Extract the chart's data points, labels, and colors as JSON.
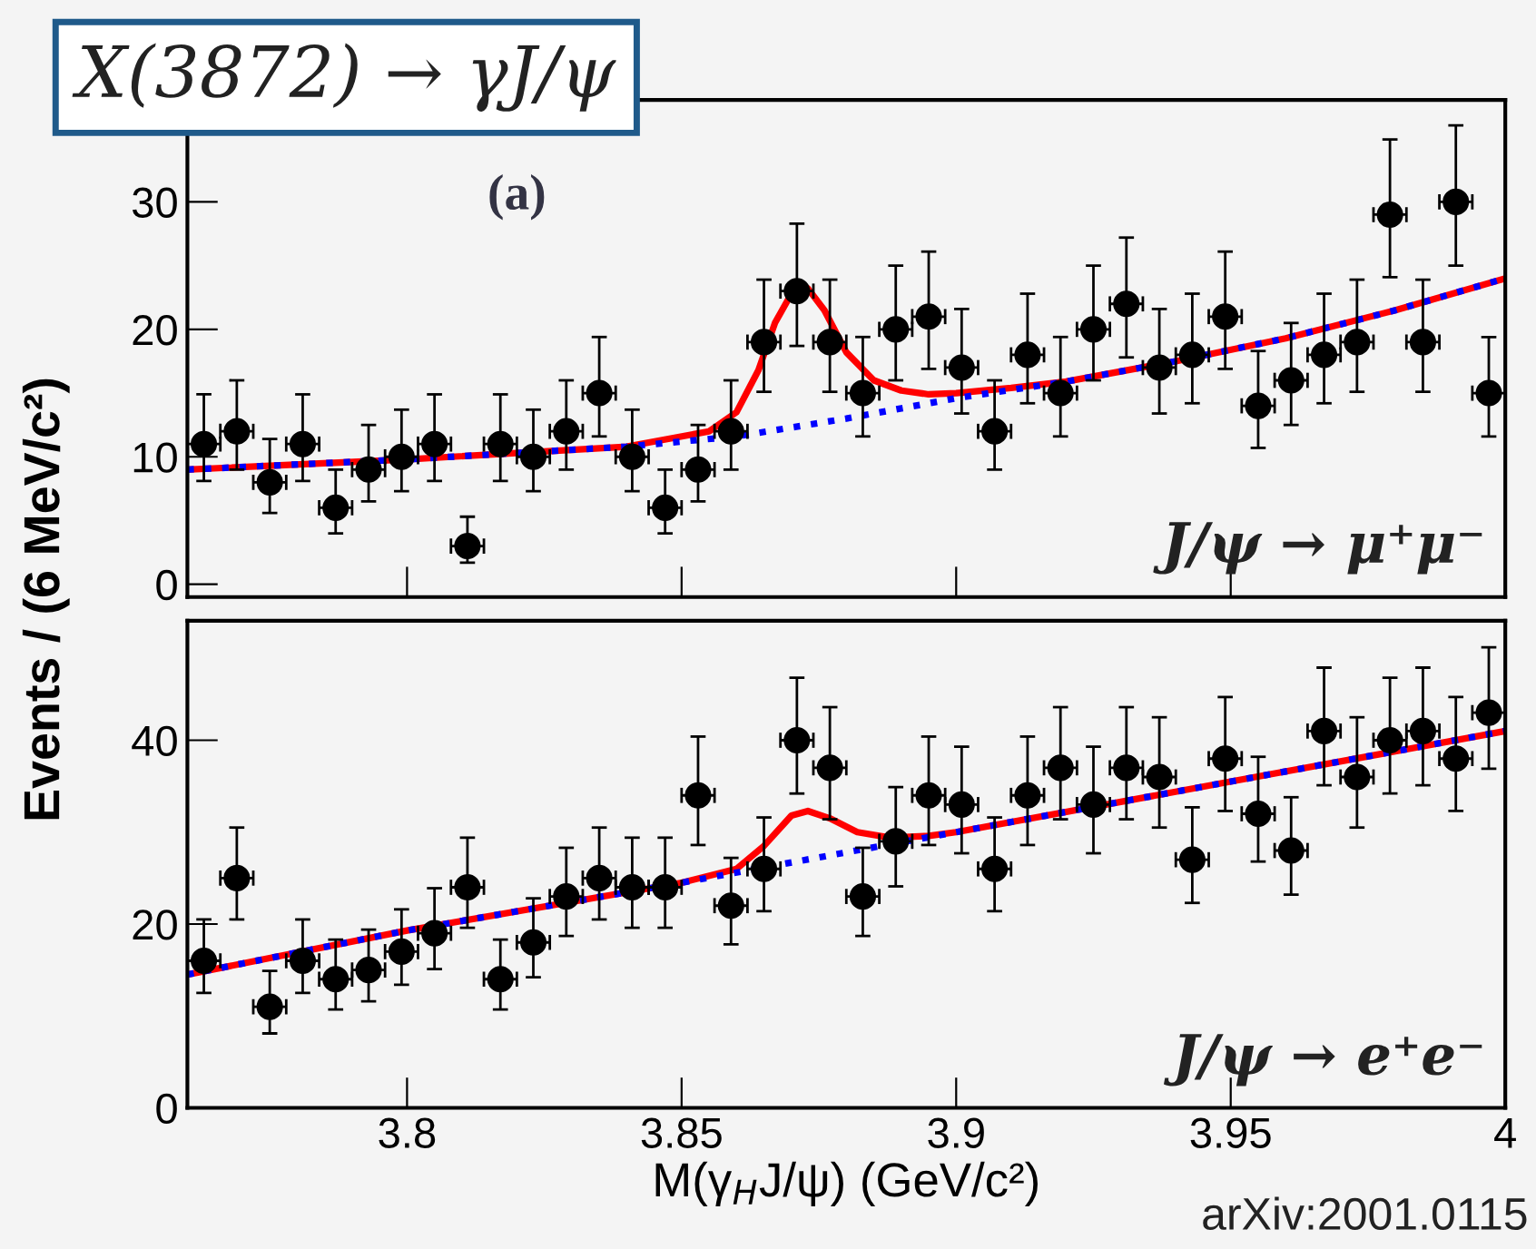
{
  "chart_data": [
    {
      "type": "scatter",
      "xlabel": "M(γ$_{H}$J/ψ) (GeV/c²)",
      "ylabel": "Events / (6 MeV/c²)",
      "xlim": [
        3.76,
        4.0
      ],
      "xticks": [
        3.8,
        3.85,
        3.9,
        3.95,
        4
      ],
      "ylim": [
        0,
        53
      ],
      "yticks": [
        0,
        20,
        40
      ],
      "grid": false,
      "legend": false,
      "annotations": [
        "J/ψ → e⁺e⁻",
        "arXiv:2001.0115"
      ],
      "series": [
        {
          "type": "scatter",
          "marker": "circle",
          "color": "#000000",
          "x": [
            3.763,
            3.769,
            3.775,
            3.781,
            3.787,
            3.793,
            3.799,
            3.805,
            3.811,
            3.817,
            3.823,
            3.829,
            3.835,
            3.841,
            3.847,
            3.853,
            3.859,
            3.865,
            3.871,
            3.877,
            3.883,
            3.889,
            3.895,
            3.901,
            3.907,
            3.913,
            3.919,
            3.925,
            3.931,
            3.937,
            3.943,
            3.949,
            3.955,
            3.961,
            3.967,
            3.973,
            3.979,
            3.985,
            3.991,
            3.997
          ],
          "values": [
            16,
            25,
            11,
            16,
            14,
            15,
            17,
            19,
            24,
            14,
            18,
            23,
            25,
            24,
            24,
            34,
            22,
            26,
            40,
            37,
            23,
            29,
            34,
            33,
            26,
            34,
            37,
            33,
            37,
            36,
            27,
            38,
            32,
            28,
            41,
            36,
            40,
            41,
            38,
            43
          ],
          "errors": [
            [
              12.5,
              20.5
            ],
            [
              20.5,
              30.5
            ],
            [
              8.1,
              14.9
            ],
            [
              12.5,
              20.5
            ],
            [
              10.7,
              18.3
            ],
            [
              11.6,
              19.4
            ],
            [
              13.4,
              21.6
            ],
            [
              15.1,
              23.9
            ],
            [
              19.6,
              29.4
            ],
            [
              10.7,
              18.3
            ],
            [
              14.2,
              22.8
            ],
            [
              18.7,
              28.3
            ],
            [
              20.5,
              30.5
            ],
            [
              19.6,
              29.4
            ],
            [
              19.6,
              29.4
            ],
            [
              28.6,
              40.4
            ],
            [
              17.8,
              27.2
            ],
            [
              21.4,
              31.6
            ],
            [
              34.2,
              46.8
            ],
            [
              31.4,
              43.6
            ],
            [
              18.7,
              28.3
            ],
            [
              24.1,
              34.9
            ],
            [
              28.6,
              40.4
            ],
            [
              27.7,
              39.3
            ],
            [
              21.4,
              31.6
            ],
            [
              28.6,
              40.4
            ],
            [
              31.4,
              43.6
            ],
            [
              27.7,
              39.3
            ],
            [
              31.4,
              43.6
            ],
            [
              30.5,
              42.5
            ],
            [
              22.3,
              32.7
            ],
            [
              32.3,
              44.7
            ],
            [
              26.8,
              38.2
            ],
            [
              23.2,
              33.8
            ],
            [
              35.1,
              47.9
            ],
            [
              30.5,
              42.5
            ],
            [
              34.2,
              46.8
            ],
            [
              35.1,
              47.9
            ],
            [
              32.3,
              44.7
            ],
            [
              36.9,
              50.1
            ]
          ],
          "xerrors": [
            0.003,
            0.003,
            0.003,
            0.003,
            0.003,
            0.003,
            0.003,
            0.003,
            0.003,
            0.003,
            0.003,
            0.003,
            0.003,
            0.003,
            0.003,
            0.003,
            0.003,
            0.003,
            0.003,
            0.003,
            0.003,
            0.003,
            0.003,
            0.003,
            0.003,
            0.003,
            0.003,
            0.003,
            0.003,
            0.003,
            0.003,
            0.003,
            0.003,
            0.003,
            0.003,
            0.003,
            0.003,
            0.003,
            0.003,
            0.003
          ]
        },
        {
          "type": "line",
          "color": "#ff0000",
          "line_style": "solid",
          "x": [
            3.76,
            3.8,
            3.85,
            3.86,
            3.865,
            3.87,
            3.873,
            3.877,
            3.882,
            3.888,
            3.895,
            3.9,
            3.95,
            4.0
          ],
          "values": [
            14.5,
            19.3,
            24.5,
            26,
            28.5,
            31.8,
            32.3,
            31.5,
            30,
            29.4,
            29.6,
            30,
            35.5,
            41
          ]
        },
        {
          "type": "line",
          "color": "#0000ff",
          "line_style": "dotted",
          "x": [
            3.76,
            3.8,
            3.85,
            3.9,
            3.95,
            4.0
          ],
          "values": [
            14.5,
            19.3,
            24.5,
            30,
            35.5,
            41
          ]
        }
      ]
    },
    {
      "type": "scatter",
      "title": "X(3872) → γJ/ψ",
      "xlim": [
        3.76,
        4.0
      ],
      "xticks": [
        3.8,
        3.85,
        3.9,
        3.95,
        4
      ],
      "ylim": [
        -1,
        38
      ],
      "yticks": [
        0,
        10,
        20,
        30
      ],
      "tick_labels": "y",
      "grid": false,
      "legend": false,
      "annotations": [
        "(a)",
        "J/ψ → μ⁺μ⁻"
      ],
      "series": [
        {
          "type": "scatter",
          "marker": "circle",
          "color": "#000000",
          "x": [
            3.763,
            3.769,
            3.775,
            3.781,
            3.787,
            3.793,
            3.799,
            3.805,
            3.811,
            3.817,
            3.823,
            3.829,
            3.835,
            3.841,
            3.847,
            3.853,
            3.859,
            3.865,
            3.871,
            3.877,
            3.883,
            3.889,
            3.895,
            3.901,
            3.907,
            3.913,
            3.919,
            3.925,
            3.931,
            3.937,
            3.943,
            3.949,
            3.955,
            3.961,
            3.967,
            3.973,
            3.979,
            3.985,
            3.991,
            3.997
          ],
          "values": [
            11,
            12,
            8,
            11,
            6,
            9,
            10,
            11,
            3,
            11,
            10,
            12,
            15,
            10,
            6,
            9,
            12,
            19,
            23,
            19,
            15,
            20,
            21,
            17,
            12,
            18,
            15,
            20,
            22,
            17,
            18,
            21,
            14,
            16,
            18,
            19,
            29,
            19,
            30,
            15
          ],
          "errors": [
            [
              8.1,
              14.9
            ],
            [
              9.0,
              16.0
            ],
            [
              5.6,
              11.4
            ],
            [
              8.1,
              14.9
            ],
            [
              4.0,
              9.0
            ],
            [
              6.5,
              12.5
            ],
            [
              7.3,
              13.7
            ],
            [
              8.1,
              14.9
            ],
            [
              1.7,
              5.3
            ],
            [
              8.1,
              14.9
            ],
            [
              7.3,
              13.7
            ],
            [
              9.0,
              16.0
            ],
            [
              11.6,
              19.4
            ],
            [
              7.3,
              13.7
            ],
            [
              4.0,
              9.0
            ],
            [
              6.5,
              12.5
            ],
            [
              9.0,
              16.0
            ],
            [
              15.1,
              23.9
            ],
            [
              18.7,
              28.3
            ],
            [
              15.1,
              23.9
            ],
            [
              11.6,
              19.4
            ],
            [
              16.0,
              25.0
            ],
            [
              16.9,
              26.1
            ],
            [
              13.4,
              21.6
            ],
            [
              9.0,
              16.0
            ],
            [
              14.2,
              22.8
            ],
            [
              11.6,
              19.4
            ],
            [
              16.0,
              25.0
            ],
            [
              17.8,
              27.2
            ],
            [
              13.4,
              21.6
            ],
            [
              14.2,
              22.8
            ],
            [
              16.9,
              26.1
            ],
            [
              10.7,
              18.3
            ],
            [
              12.5,
              20.5
            ],
            [
              14.2,
              22.8
            ],
            [
              15.1,
              23.9
            ],
            [
              24.1,
              34.9
            ],
            [
              15.1,
              23.9
            ],
            [
              25.0,
              36.0
            ],
            [
              11.6,
              19.4
            ]
          ],
          "xerrors": [
            0.003,
            0.003,
            0.003,
            0.003,
            0.003,
            0.003,
            0.003,
            0.003,
            0.003,
            0.003,
            0.003,
            0.003,
            0.003,
            0.003,
            0.003,
            0.003,
            0.003,
            0.003,
            0.003,
            0.003,
            0.003,
            0.003,
            0.003,
            0.003,
            0.003,
            0.003,
            0.003,
            0.003,
            0.003,
            0.003,
            0.003,
            0.003,
            0.003,
            0.003,
            0.003,
            0.003,
            0.003,
            0.003,
            0.003,
            0.003
          ]
        },
        {
          "type": "line",
          "color": "#ff0000",
          "line_style": "solid",
          "x": [
            3.76,
            3.8,
            3.84,
            3.855,
            3.86,
            3.864,
            3.867,
            3.87,
            3.873,
            3.876,
            3.88,
            3.885,
            3.89,
            3.895,
            3.9,
            3.91,
            3.92,
            3.94,
            3.96,
            3.98,
            4.0
          ],
          "values": [
            9,
            9.8,
            10.8,
            12,
            13.5,
            16.8,
            20.5,
            22.8,
            23.2,
            21.5,
            18.2,
            16,
            15.2,
            14.9,
            15,
            15.4,
            15.9,
            17.5,
            19.3,
            21.5,
            24
          ]
        },
        {
          "type": "line",
          "color": "#0000ff",
          "line_style": "dotted",
          "x": [
            3.76,
            3.8,
            3.84,
            3.86,
            3.88,
            3.9,
            3.92,
            3.94,
            3.96,
            3.98,
            4.0
          ],
          "values": [
            9,
            9.8,
            10.8,
            11.6,
            13,
            14.6,
            15.9,
            17.5,
            19.3,
            21.5,
            24
          ]
        }
      ]
    }
  ]
}
